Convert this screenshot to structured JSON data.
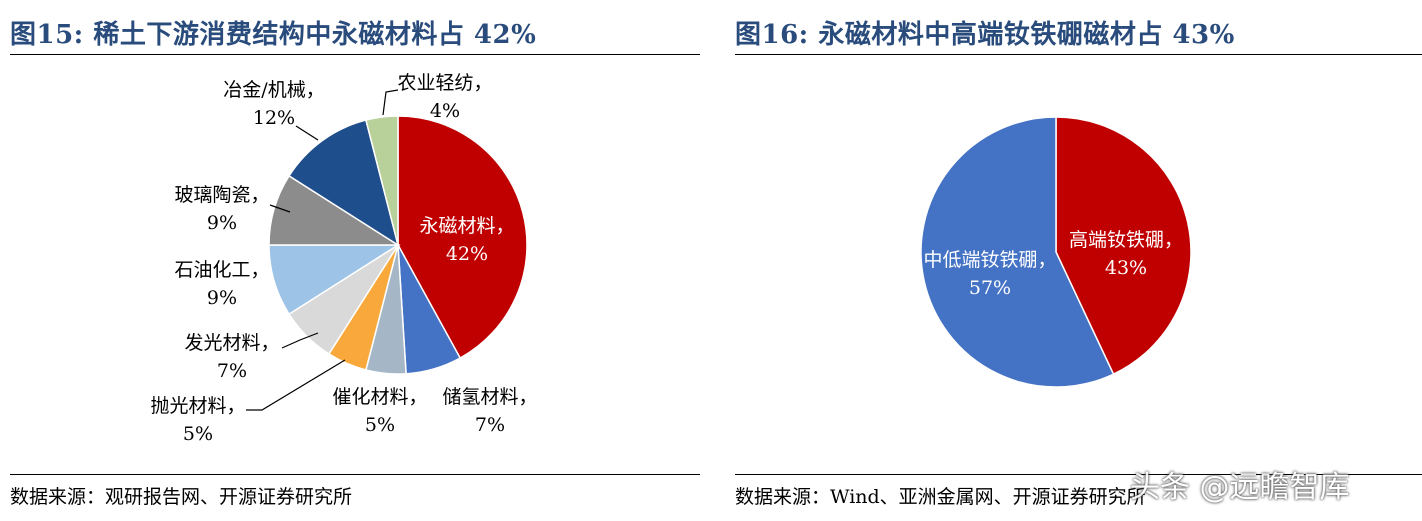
{
  "left_panel": {
    "title": "图15:  稀土下游消费结构中永磁材料占 42%",
    "source": "数据来源：观研报告网、开源证券研究所"
  },
  "right_panel": {
    "title": "图16:  永磁材料中高端钕铁硼磁材占 43%",
    "source": "数据来源：Wind、亚洲金属网、开源证券研究所"
  },
  "watermark": "头条 @远瞻智库",
  "chart_data": [
    {
      "type": "pie",
      "title": "图15:  稀土下游消费结构中永磁材料占 42%",
      "start": "12 o'clock, clockwise",
      "slices": [
        {
          "name": "永磁材料",
          "value": 42,
          "label": "42%",
          "color": "#c00000"
        },
        {
          "name": "储氢材料",
          "value": 7,
          "label": "7%",
          "color": "#4472c4"
        },
        {
          "name": "催化材料",
          "value": 5,
          "label": "5%",
          "color": "#a5b7c6"
        },
        {
          "name": "抛光材料",
          "value": 5,
          "label": "5%",
          "color": "#f9a93b"
        },
        {
          "name": "发光材料",
          "value": 7,
          "label": "7%",
          "color": "#d9d9d9"
        },
        {
          "name": "石油化工",
          "value": 9,
          "label": "9%",
          "color": "#9dc3e6"
        },
        {
          "name": "玻璃陶瓷",
          "value": 9,
          "label": "9%",
          "color": "#8c8c8c"
        },
        {
          "name": "冶金/机械",
          "value": 12,
          "label": "12%",
          "color": "#1f4e8c"
        },
        {
          "name": "农业轻纺",
          "value": 4,
          "label": "4%",
          "color": "#b8d09a"
        }
      ]
    },
    {
      "type": "pie",
      "title": "图16:  永磁材料中高端钕铁硼磁材占 43%",
      "start": "12 o'clock, clockwise",
      "slices": [
        {
          "name": "高端钕铁硼",
          "value": 43,
          "label": "43%",
          "color": "#c00000"
        },
        {
          "name": "中低端钕铁硼",
          "value": 57,
          "label": "57%",
          "color": "#4472c4"
        }
      ]
    }
  ]
}
